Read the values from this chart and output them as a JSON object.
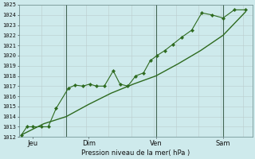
{
  "xlabel": "Pression niveau de la mer( hPa )",
  "bg_color": "#ceeaec",
  "grid_minor_color": "#bbcccc",
  "grid_major_color": "#99bbbb",
  "vline_color": "#446655",
  "line_color": "#2d6a1e",
  "ylim": [
    1012,
    1025
  ],
  "yticks": [
    1012,
    1013,
    1014,
    1015,
    1016,
    1017,
    1018,
    1019,
    1020,
    1021,
    1022,
    1023,
    1024,
    1025
  ],
  "xtick_labels": [
    "Jeu",
    "Dim",
    "Ven",
    "Sam"
  ],
  "xtick_positions": [
    0.5,
    3,
    6,
    9
  ],
  "line1_x": [
    0,
    0.25,
    0.5,
    0.9,
    1.2,
    1.55,
    2.1,
    2.4,
    2.75,
    3.05,
    3.35,
    3.7,
    4.1,
    4.4,
    4.75,
    5.1,
    5.45,
    5.75,
    6.05,
    6.4,
    6.75,
    7.15,
    7.6,
    8.05,
    8.5,
    9.0,
    9.5,
    10.0
  ],
  "line1_y": [
    1012.2,
    1013.0,
    1013.0,
    1013.0,
    1013.0,
    1014.8,
    1016.8,
    1017.1,
    1017.0,
    1017.2,
    1017.0,
    1017.0,
    1018.5,
    1017.2,
    1017.0,
    1018.0,
    1018.3,
    1019.5,
    1020.0,
    1020.5,
    1021.1,
    1021.8,
    1022.5,
    1024.2,
    1024.0,
    1023.7,
    1024.5,
    1024.5
  ],
  "line2_x": [
    0,
    1.0,
    2.0,
    3.0,
    4.0,
    5.0,
    6.0,
    7.0,
    8.0,
    9.0,
    10.0
  ],
  "line2_y": [
    1012.2,
    1013.3,
    1014.0,
    1015.2,
    1016.3,
    1017.2,
    1018.0,
    1019.2,
    1020.5,
    1022.0,
    1024.3
  ],
  "vlines_x": [
    2.0,
    6.0,
    9.0
  ],
  "xlim": [
    -0.1,
    10.3
  ]
}
